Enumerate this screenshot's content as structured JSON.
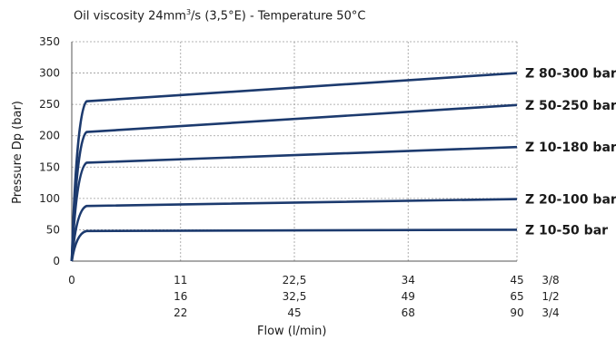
{
  "chart_data": {
    "type": "line",
    "title_prefix": "Oil viscosity 24mm",
    "title_sup": "3",
    "title_suffix": "/s (3,5°E) - Temperature 50°C",
    "ylabel": "Pressure Dp (bar)",
    "xlabel": "Flow (l/min)",
    "ylim": [
      0,
      350
    ],
    "yticks": [
      "0",
      "50",
      "100",
      "150",
      "200",
      "250",
      "300",
      "350"
    ],
    "xlim": [
      0,
      45
    ],
    "grid": true,
    "x_axis_rows": [
      {
        "label": "3/8",
        "ticks": [
          "0",
          "11",
          "22,5",
          "34",
          "45"
        ]
      },
      {
        "label": "1/2",
        "ticks": [
          "",
          "16",
          "32,5",
          "49",
          "65"
        ]
      },
      {
        "label": "3/4",
        "ticks": [
          "",
          "22",
          "45",
          "68",
          "90"
        ]
      }
    ],
    "x_tick_positions": [
      0,
      11,
      22.5,
      34,
      45
    ],
    "line_color": "#1c3a6e",
    "series": [
      {
        "name": "Z 80-300 bar",
        "x": [
          0,
          0.3,
          0.8,
          1.5,
          45
        ],
        "y": [
          0,
          150,
          245,
          255,
          300
        ]
      },
      {
        "name": "Z 50-250 bar",
        "x": [
          0,
          0.3,
          0.8,
          1.5,
          45
        ],
        "y": [
          0,
          120,
          198,
          206,
          249
        ]
      },
      {
        "name": "Z 10-180 bar",
        "x": [
          0,
          0.3,
          0.8,
          1.5,
          45
        ],
        "y": [
          0,
          95,
          150,
          157,
          182
        ]
      },
      {
        "name": "Z 20-100 bar",
        "x": [
          0,
          0.3,
          0.8,
          1.5,
          45
        ],
        "y": [
          0,
          55,
          84,
          88,
          99
        ]
      },
      {
        "name": "Z 10-50 bar",
        "x": [
          0,
          0.3,
          0.8,
          1.5,
          45
        ],
        "y": [
          0,
          30,
          46,
          48,
          50
        ]
      }
    ]
  }
}
